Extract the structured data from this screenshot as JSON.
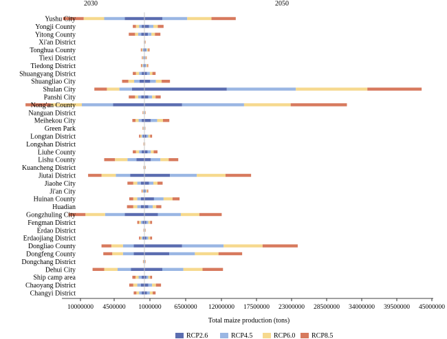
{
  "chart_data": {
    "type": "bar",
    "subtype": "butterfly stacked horizontal bar",
    "left_title": "2030",
    "right_title": "2050",
    "xlabel": "Total maize production (tons)",
    "x_tick_labels": [
      "10000000",
      "4500000",
      "1000000",
      "6500000",
      "12000000",
      "17500000",
      "23000000",
      "28500000",
      "34000000",
      "39500000",
      "45000000"
    ],
    "legend_position": "bottom",
    "categories": [
      "Yushu City",
      "Yongji County",
      "Yitong County",
      "Xi'an District",
      "Tonghua County",
      "Tiexi District",
      "Tiedong District",
      "Shuangyang District",
      "Shuangliao City",
      "Shulan City",
      "Panshi City",
      "Nong'an County",
      "Nanguan District",
      "Meihekou City",
      "Green Park",
      "Longtan District",
      "Longshan District",
      "Liuhe County",
      "Lishu County",
      "Kuancheng District",
      "Jiutai District",
      "Jiaohe City",
      "Ji'an City",
      "Huinan County",
      "Huadian",
      "Gongzhuling City",
      "Fengman District",
      "Erdao District",
      "Erdaojiang District",
      "Dongliao County",
      "Dongfeng County",
      "Dongchang District",
      "Dehui City",
      "Ship camp area",
      "Chaoyang District",
      "Changyi District"
    ],
    "series": [
      {
        "name": "RCP2.6",
        "color": "#5b6db0",
        "values_2030": [
          2200000,
          300000,
          350000,
          15000,
          100000,
          70000,
          90000,
          300000,
          550000,
          1400000,
          350000,
          3500000,
          50000,
          300000,
          50000,
          150000,
          30000,
          300000,
          900000,
          30000,
          1600000,
          400000,
          80000,
          400000,
          400000,
          2200000,
          200000,
          30000,
          150000,
          1200000,
          1200000,
          40000,
          1500000,
          300000,
          400000,
          300000
        ],
        "values_2050": [
          2800000,
          700000,
          550000,
          50000,
          200000,
          90000,
          150000,
          400000,
          900000,
          12900000,
          600000,
          5900000,
          50000,
          1000000,
          40000,
          300000,
          30000,
          500000,
          1000000,
          50000,
          4000000,
          700000,
          150000,
          1500000,
          600000,
          2100000,
          300000,
          50000,
          300000,
          5900000,
          3900000,
          50000,
          2800000,
          300000,
          600000,
          400000
        ]
      },
      {
        "name": "RCP4.5",
        "color": "#9ab6e3",
        "values_2030": [
          2300000,
          300000,
          350000,
          15000,
          100000,
          70000,
          100000,
          300000,
          600000,
          1400000,
          350000,
          3500000,
          50000,
          350000,
          50000,
          150000,
          30000,
          300000,
          1000000,
          30000,
          1600000,
          400000,
          80000,
          400000,
          400000,
          2200000,
          200000,
          30000,
          150000,
          1200000,
          1200000,
          40000,
          1500000,
          350000,
          400000,
          300000
        ],
        "values_2050": [
          3900000,
          700000,
          550000,
          50000,
          200000,
          90000,
          150000,
          450000,
          900000,
          10800000,
          600000,
          9700000,
          50000,
          1000000,
          40000,
          300000,
          30000,
          500000,
          1500000,
          50000,
          4200000,
          700000,
          150000,
          1500000,
          700000,
          3600000,
          300000,
          50000,
          300000,
          6500000,
          4000000,
          50000,
          3300000,
          300000,
          600000,
          450000
        ]
      },
      {
        "name": "RCP6.0",
        "color": "#f6d98e",
        "values_2030": [
          2300000,
          350000,
          350000,
          15000,
          100000,
          70000,
          100000,
          350000,
          650000,
          1400000,
          350000,
          3500000,
          50000,
          350000,
          50000,
          150000,
          30000,
          350000,
          1400000,
          30000,
          1600000,
          450000,
          80000,
          450000,
          450000,
          2200000,
          200000,
          30000,
          150000,
          1300000,
          1200000,
          40000,
          1500000,
          350000,
          450000,
          300000
        ],
        "values_2050": [
          3800000,
          700000,
          550000,
          50000,
          200000,
          90000,
          150000,
          400000,
          900000,
          11200000,
          550000,
          7300000,
          50000,
          900000,
          40000,
          300000,
          30000,
          450000,
          1300000,
          50000,
          4500000,
          650000,
          150000,
          1400000,
          550000,
          2900000,
          300000,
          50000,
          300000,
          6100000,
          3700000,
          50000,
          3000000,
          300000,
          600000,
          450000
        ]
      },
      {
        "name": "RCP8.5",
        "color": "#d77a5e",
        "values_2030": [
          2300000,
          350000,
          700000,
          15000,
          100000,
          70000,
          100000,
          350000,
          700000,
          1400000,
          700000,
          2800000,
          50000,
          350000,
          50000,
          150000,
          30000,
          350000,
          1200000,
          30000,
          1500000,
          650000,
          80000,
          450000,
          700000,
          1900000,
          200000,
          30000,
          150000,
          1100000,
          1000000,
          40000,
          1300000,
          350000,
          450000,
          300000
        ],
        "values_2050": [
          3800000,
          900000,
          850000,
          50000,
          200000,
          90000,
          150000,
          500000,
          1300000,
          8500000,
          800000,
          8800000,
          50000,
          1000000,
          40000,
          300000,
          30000,
          600000,
          1500000,
          50000,
          4000000,
          800000,
          150000,
          1100000,
          800000,
          3500000,
          300000,
          50000,
          300000,
          5500000,
          3700000,
          50000,
          3200000,
          300000,
          800000,
          450000
        ]
      }
    ]
  }
}
